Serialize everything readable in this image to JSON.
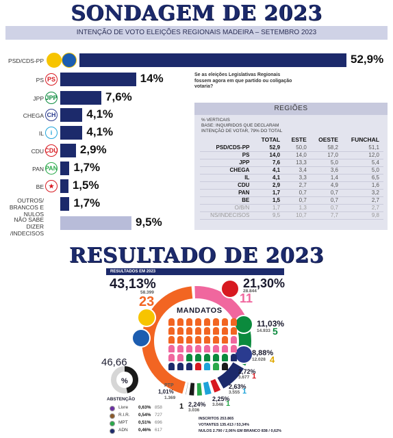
{
  "titles": {
    "sondagem": "SONDAGEM DE 2023",
    "resultado": "RESULTADO DE 2023",
    "subtitle": "INTENÇÃO DE VOTO ELEIÇÕES REGIONAIS MADEIRA – SETEMBRO 2023",
    "note": "Se as eleições Legislativas Regionais fossem agora em que partido ou coligação votaria?"
  },
  "colors": {
    "navy": "#1c2a6b",
    "grey_bar": "#b8bcd9",
    "orange": "#f26522",
    "pink": "#f0679e",
    "green": "#0b8a3d",
    "yellow": "#f7c400",
    "red": "#d71920",
    "black": "#1a1a1a"
  },
  "chart_data": [
    {
      "type": "bar",
      "title": "INTENÇÃO DE VOTO ELEIÇÕES REGIONAIS MADEIRA – SETEMBRO 2023",
      "categories": [
        "PSD/CDS-PP",
        "PS",
        "JPP",
        "CHEGA",
        "IL",
        "CDU",
        "PAN",
        "BE",
        "OUTROS/ BRANCOS E NULOS",
        "NÃO SABE DIZER /INDECISOS"
      ],
      "values": [
        52.9,
        14,
        7.6,
        4.1,
        4.1,
        2.9,
        1.7,
        1.5,
        1.7,
        9.5
      ],
      "value_labels": [
        "52,9%",
        "14%",
        "7,6%",
        "4,1%",
        "4,1%",
        "2,9%",
        "1,7%",
        "1,5%",
        "1,7%",
        "9,5%"
      ],
      "orientation": "horizontal"
    },
    {
      "type": "table",
      "title": "REGIÕES",
      "note_lines": [
        "% VERTICAIS",
        "BASE: INQUIRIDOS QUE DECLARAM",
        "INTENÇÃO DE VOTAR, 79% DO TOTAL"
      ],
      "columns": [
        "TOTAL",
        "ESTE",
        "OESTE",
        "FUNCHAL"
      ],
      "rows": [
        {
          "party": "PSD/CDS-PP",
          "values": [
            "52,9",
            "50,0",
            "58,2",
            "51,1"
          ]
        },
        {
          "party": "PS",
          "values": [
            "14,0",
            "14,0",
            "17,0",
            "12,0"
          ]
        },
        {
          "party": "JPP",
          "values": [
            "7,6",
            "13,3",
            "5,0",
            "5,4"
          ]
        },
        {
          "party": "CHEGA",
          "values": [
            "4,1",
            "3,4",
            "3,6",
            "5,0"
          ]
        },
        {
          "party": "IL",
          "values": [
            "4,1",
            "3,3",
            "1,4",
            "6,5"
          ]
        },
        {
          "party": "CDU",
          "values": [
            "2,9",
            "2,7",
            "4,9",
            "1,6"
          ]
        },
        {
          "party": "PAN",
          "values": [
            "1,7",
            "0,7",
            "0,7",
            "3,2"
          ]
        },
        {
          "party": "BE",
          "values": [
            "1,5",
            "0,7",
            "0,7",
            "2,7"
          ]
        },
        {
          "party": "O/B/N",
          "values": [
            "1,7",
            "1,3",
            "0,7",
            "2,7"
          ]
        },
        {
          "party": "NS/INDECISOS",
          "values": [
            "9,5",
            "10,7",
            "7,7",
            "9,8"
          ]
        }
      ]
    },
    {
      "type": "pie",
      "title": "RESULTADOS EM 2023",
      "center_label": "MANDATOS",
      "series": [
        {
          "party": "PSD/CDS-PP",
          "pct": 43.13,
          "pct_label": "43,13%",
          "votes": "58.399",
          "seats": 23
        },
        {
          "party": "PS",
          "pct": 21.3,
          "pct_label": "21,30%",
          "votes": "28.844",
          "seats": 11
        },
        {
          "party": "JPP",
          "pct": 11.03,
          "pct_label": "11,03%",
          "votes": "14.933",
          "seats": 5
        },
        {
          "party": "CHEGA",
          "pct": 8.88,
          "pct_label": "8,88%",
          "votes": "12.028",
          "seats": 4
        },
        {
          "party": "CDU",
          "pct": 2.72,
          "pct_label": "2,72%",
          "votes": "3.677",
          "seats": 1
        },
        {
          "party": "IL",
          "pct": 2.63,
          "pct_label": "2,63%",
          "votes": "3.555",
          "seats": 1
        },
        {
          "party": "PAN",
          "pct": 2.25,
          "pct_label": "2,25%",
          "votes": "3.046",
          "seats": 1
        },
        {
          "party": "BE",
          "pct": 2.24,
          "pct_label": "2,24%",
          "votes": "3.036",
          "seats": 1
        },
        {
          "party": "PTP",
          "pct": 1.01,
          "pct_label": "1,01%",
          "votes": "1.369",
          "seats": 0
        }
      ]
    }
  ],
  "abstencao": {
    "value": "46,66",
    "symbol": "%",
    "label": "ABSTENÇÃO",
    "pct": 46.66
  },
  "minor_parties": [
    {
      "name": "Livre",
      "pct": "0,63%",
      "votes": "858"
    },
    {
      "name": "R.I.R.",
      "pct": "0,54%",
      "votes": "727"
    },
    {
      "name": "MPT",
      "pct": "0,51%",
      "votes": "696"
    },
    {
      "name": "ADN",
      "pct": "0,46%",
      "votes": "617"
    }
  ],
  "totals": {
    "inscritos": "INSCRITOS 253.865",
    "votantes": "VOTANTES 135.413 / 53,34%",
    "nulos": "NULOS 2.790 / 2,06% EM BRANCO 838 / 0,62%"
  }
}
